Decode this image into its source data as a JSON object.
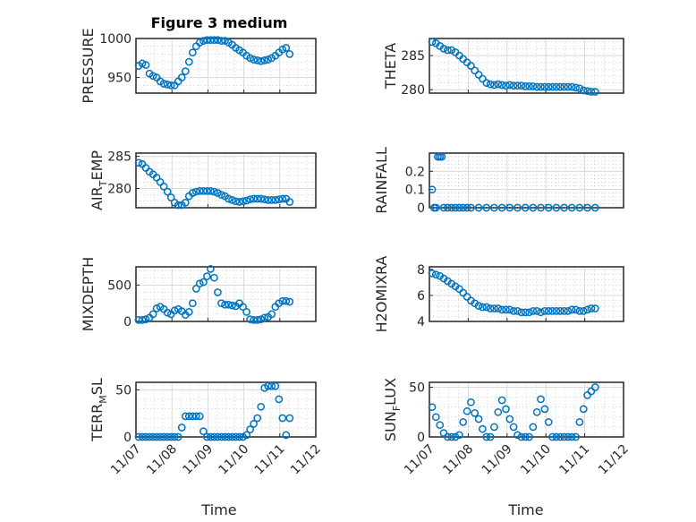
{
  "title": "Figure 3 medium",
  "colors": {
    "marker": "#0072BD",
    "axis": "#262626"
  },
  "chart_data": [
    {
      "type": "scatter",
      "id": "pressure",
      "ylabel": "PRESSURE",
      "ylabel_sub": "",
      "ylim": [
        930,
        1000
      ],
      "yticks": [
        950,
        1000
      ],
      "xlim": [
        0,
        5
      ],
      "x": [
        0.0,
        0.1,
        0.2,
        0.3,
        0.4,
        0.5,
        0.6,
        0.7,
        0.8,
        0.9,
        1.0,
        1.1,
        1.2,
        1.3,
        1.4,
        1.5,
        1.6,
        1.7,
        1.8,
        1.9,
        2.0,
        2.1,
        2.2,
        2.3,
        2.4,
        2.5,
        2.6,
        2.7,
        2.8,
        2.9,
        3.0,
        3.1,
        3.2,
        3.3,
        3.4,
        3.5,
        3.6,
        3.7,
        3.8,
        3.9,
        4.0,
        4.1,
        4.2
      ],
      "y": [
        965,
        968,
        966,
        955,
        952,
        950,
        945,
        942,
        941,
        940,
        940,
        945,
        950,
        958,
        970,
        982,
        990,
        995,
        997,
        998,
        998,
        998,
        998,
        997,
        997,
        995,
        992,
        988,
        985,
        982,
        978,
        975,
        973,
        972,
        971,
        972,
        973,
        975,
        978,
        982,
        986,
        988,
        980
      ]
    },
    {
      "type": "scatter",
      "id": "theta",
      "ylabel": "THETA",
      "ylabel_sub": "",
      "ylim": [
        279.5,
        287.5
      ],
      "yticks": [
        280,
        285
      ],
      "xlim": [
        0,
        5
      ],
      "x": [
        0.0,
        0.1,
        0.2,
        0.3,
        0.4,
        0.5,
        0.6,
        0.7,
        0.8,
        0.9,
        1.0,
        1.1,
        1.2,
        1.3,
        1.4,
        1.5,
        1.6,
        1.7,
        1.8,
        1.9,
        2.0,
        2.1,
        2.2,
        2.3,
        2.4,
        2.5,
        2.6,
        2.7,
        2.8,
        2.9,
        3.0,
        3.1,
        3.2,
        3.3,
        3.4,
        3.5,
        3.6,
        3.7,
        3.8,
        3.9,
        4.0,
        4.1,
        4.2
      ],
      "y": [
        287.0,
        286.8,
        286.4,
        286.0,
        285.8,
        285.8,
        285.5,
        285.0,
        284.5,
        284.0,
        283.5,
        282.8,
        282.2,
        281.6,
        281.0,
        280.8,
        280.7,
        280.8,
        280.7,
        280.6,
        280.7,
        280.6,
        280.6,
        280.6,
        280.5,
        280.5,
        280.5,
        280.4,
        280.4,
        280.4,
        280.4,
        280.4,
        280.4,
        280.4,
        280.4,
        280.4,
        280.4,
        280.3,
        280.2,
        279.9,
        279.8,
        279.7,
        279.7
      ]
    },
    {
      "type": "scatter",
      "id": "air-temp",
      "ylabel": "AIR",
      "ylabel_sub": "T",
      "ylabel_rest": "EMP",
      "ylim": [
        277,
        285.5
      ],
      "yticks": [
        280,
        285
      ],
      "xlim": [
        0,
        5
      ],
      "x": [
        0.0,
        0.1,
        0.2,
        0.3,
        0.4,
        0.5,
        0.6,
        0.7,
        0.8,
        0.9,
        1.0,
        1.1,
        1.2,
        1.3,
        1.4,
        1.5,
        1.6,
        1.7,
        1.8,
        1.9,
        2.0,
        2.1,
        2.2,
        2.3,
        2.4,
        2.5,
        2.6,
        2.7,
        2.8,
        2.9,
        3.0,
        3.1,
        3.2,
        3.3,
        3.4,
        3.5,
        3.6,
        3.7,
        3.8,
        3.9,
        4.0,
        4.1,
        4.2
      ],
      "y": [
        284.0,
        283.8,
        283.2,
        282.6,
        282.2,
        281.7,
        281.0,
        280.3,
        279.5,
        278.6,
        277.8,
        277.4,
        277.4,
        277.8,
        278.8,
        279.3,
        279.5,
        279.6,
        279.6,
        279.6,
        279.6,
        279.5,
        279.3,
        279.0,
        278.8,
        278.4,
        278.2,
        278.0,
        277.9,
        278.0,
        278.1,
        278.3,
        278.4,
        278.4,
        278.4,
        278.3,
        278.2,
        278.2,
        278.2,
        278.3,
        278.4,
        278.4,
        277.9
      ]
    },
    {
      "type": "scatter",
      "id": "rainfall",
      "ylabel": "RAINFALL",
      "ylabel_sub": "",
      "ylim": [
        0,
        0.3
      ],
      "yticks": [
        0,
        0.1,
        0.2
      ],
      "ytick_labels": [
        "0",
        "0.1",
        "0.2"
      ],
      "xlim": [
        0,
        5
      ],
      "x": [
        0.0,
        0.05,
        0.1,
        0.15,
        0.2,
        0.25,
        0.3,
        0.4,
        0.5,
        0.6,
        0.7,
        0.8,
        0.9,
        1.0,
        1.2,
        1.4,
        1.6,
        1.8,
        2.0,
        2.2,
        2.4,
        2.6,
        2.8,
        3.0,
        3.2,
        3.4,
        3.6,
        3.8,
        4.0,
        4.2
      ],
      "y": [
        0.1,
        0,
        0,
        0.28,
        0.28,
        0.28,
        0,
        0,
        0,
        0,
        0,
        0,
        0,
        0,
        0,
        0,
        0,
        0,
        0,
        0,
        0,
        0,
        0,
        0,
        0,
        0,
        0,
        0,
        0,
        0
      ]
    },
    {
      "type": "scatter",
      "id": "mixdepth",
      "ylabel": "MIXDEPTH",
      "ylabel_sub": "",
      "ylim": [
        0,
        750
      ],
      "yticks": [
        0,
        500
      ],
      "xlim": [
        0,
        5
      ],
      "x": [
        0.0,
        0.1,
        0.2,
        0.3,
        0.4,
        0.5,
        0.6,
        0.7,
        0.8,
        0.9,
        1.0,
        1.1,
        1.2,
        1.3,
        1.4,
        1.5,
        1.6,
        1.7,
        1.8,
        1.9,
        2.0,
        2.1,
        2.2,
        2.3,
        2.4,
        2.5,
        2.6,
        2.7,
        2.8,
        2.9,
        3.0,
        3.1,
        3.2,
        3.3,
        3.4,
        3.5,
        3.6,
        3.7,
        3.8,
        3.9,
        4.0,
        4.1,
        4.2
      ],
      "y": [
        20,
        20,
        30,
        50,
        100,
        180,
        200,
        170,
        120,
        100,
        150,
        170,
        140,
        90,
        130,
        250,
        450,
        520,
        540,
        620,
        720,
        600,
        400,
        250,
        230,
        230,
        220,
        210,
        250,
        200,
        130,
        30,
        20,
        20,
        30,
        50,
        60,
        100,
        200,
        250,
        280,
        280,
        270
      ]
    },
    {
      "type": "scatter",
      "id": "h2omixra",
      "ylabel": "H2OMIXRA",
      "ylabel_sub": "",
      "ylim": [
        4,
        8.2
      ],
      "yticks": [
        4,
        6,
        8
      ],
      "xlim": [
        0,
        5
      ],
      "x": [
        0.0,
        0.1,
        0.2,
        0.3,
        0.4,
        0.5,
        0.6,
        0.7,
        0.8,
        0.9,
        1.0,
        1.1,
        1.2,
        1.3,
        1.4,
        1.5,
        1.6,
        1.7,
        1.8,
        1.9,
        2.0,
        2.1,
        2.2,
        2.3,
        2.4,
        2.5,
        2.6,
        2.7,
        2.8,
        2.9,
        3.0,
        3.1,
        3.2,
        3.3,
        3.4,
        3.5,
        3.6,
        3.7,
        3.8,
        3.9,
        4.0,
        4.1,
        4.2
      ],
      "y": [
        7.7,
        7.6,
        7.5,
        7.3,
        7.1,
        6.9,
        6.7,
        6.5,
        6.2,
        5.9,
        5.6,
        5.4,
        5.2,
        5.1,
        5.1,
        5.0,
        5.0,
        5.0,
        4.9,
        4.9,
        4.9,
        4.8,
        4.8,
        4.7,
        4.7,
        4.7,
        4.8,
        4.8,
        4.7,
        4.8,
        4.8,
        4.8,
        4.8,
        4.8,
        4.8,
        4.8,
        4.9,
        4.9,
        4.8,
        4.8,
        4.9,
        5.0,
        5.0
      ]
    },
    {
      "type": "scatter",
      "id": "terr-msl",
      "ylabel": "TERR",
      "ylabel_sub": "M",
      "ylabel_rest": "SL",
      "ylim": [
        0,
        58
      ],
      "yticks": [
        0,
        50
      ],
      "xlim": [
        0,
        5
      ],
      "x": [
        0.0,
        0.1,
        0.2,
        0.3,
        0.4,
        0.5,
        0.6,
        0.7,
        0.8,
        0.9,
        1.0,
        1.1,
        1.2,
        1.3,
        1.4,
        1.5,
        1.6,
        1.7,
        1.8,
        1.9,
        2.0,
        2.1,
        2.2,
        2.3,
        2.4,
        2.5,
        2.6,
        2.7,
        2.8,
        2.9,
        3.0,
        3.1,
        3.2,
        3.3,
        3.4,
        3.5,
        3.6,
        3.7,
        3.8,
        3.9,
        4.0,
        4.1,
        4.2
      ],
      "y": [
        0,
        0,
        0,
        0,
        0,
        0,
        0,
        0,
        0,
        0,
        0,
        0,
        10,
        22,
        22,
        22,
        22,
        22,
        6,
        0,
        0,
        0,
        0,
        0,
        0,
        0,
        0,
        0,
        0,
        0,
        2,
        8,
        14,
        20,
        32,
        52,
        54,
        54,
        54,
        40,
        20,
        2,
        20
      ]
    },
    {
      "type": "scatter",
      "id": "sun-flux",
      "ylabel": "SUN",
      "ylabel_sub": "F",
      "ylabel_rest": "LUX",
      "ylim": [
        0,
        55
      ],
      "yticks": [
        0,
        50
      ],
      "xlim": [
        0,
        5
      ],
      "x": [
        0.0,
        0.1,
        0.2,
        0.3,
        0.4,
        0.5,
        0.6,
        0.7,
        0.8,
        0.9,
        1.0,
        1.1,
        1.2,
        1.3,
        1.4,
        1.5,
        1.6,
        1.7,
        1.8,
        1.9,
        2.0,
        2.1,
        2.2,
        2.3,
        2.4,
        2.5,
        2.6,
        2.7,
        2.8,
        2.9,
        3.0,
        3.1,
        3.2,
        3.3,
        3.4,
        3.5,
        3.6,
        3.7,
        3.8,
        3.9,
        4.0,
        4.1,
        4.2
      ],
      "y": [
        30,
        20,
        12,
        4,
        0,
        0,
        0,
        2,
        15,
        26,
        35,
        24,
        18,
        8,
        0,
        0,
        10,
        25,
        37,
        28,
        18,
        10,
        2,
        0,
        0,
        0,
        10,
        25,
        38,
        28,
        15,
        0,
        0,
        0,
        0,
        0,
        0,
        0,
        15,
        28,
        42,
        46,
        50
      ]
    }
  ],
  "shared_x": {
    "tick_labels": [
      "11/07",
      "11/08",
      "11/09",
      "11/10",
      "11/11",
      "11/12"
    ],
    "label": "Time"
  }
}
